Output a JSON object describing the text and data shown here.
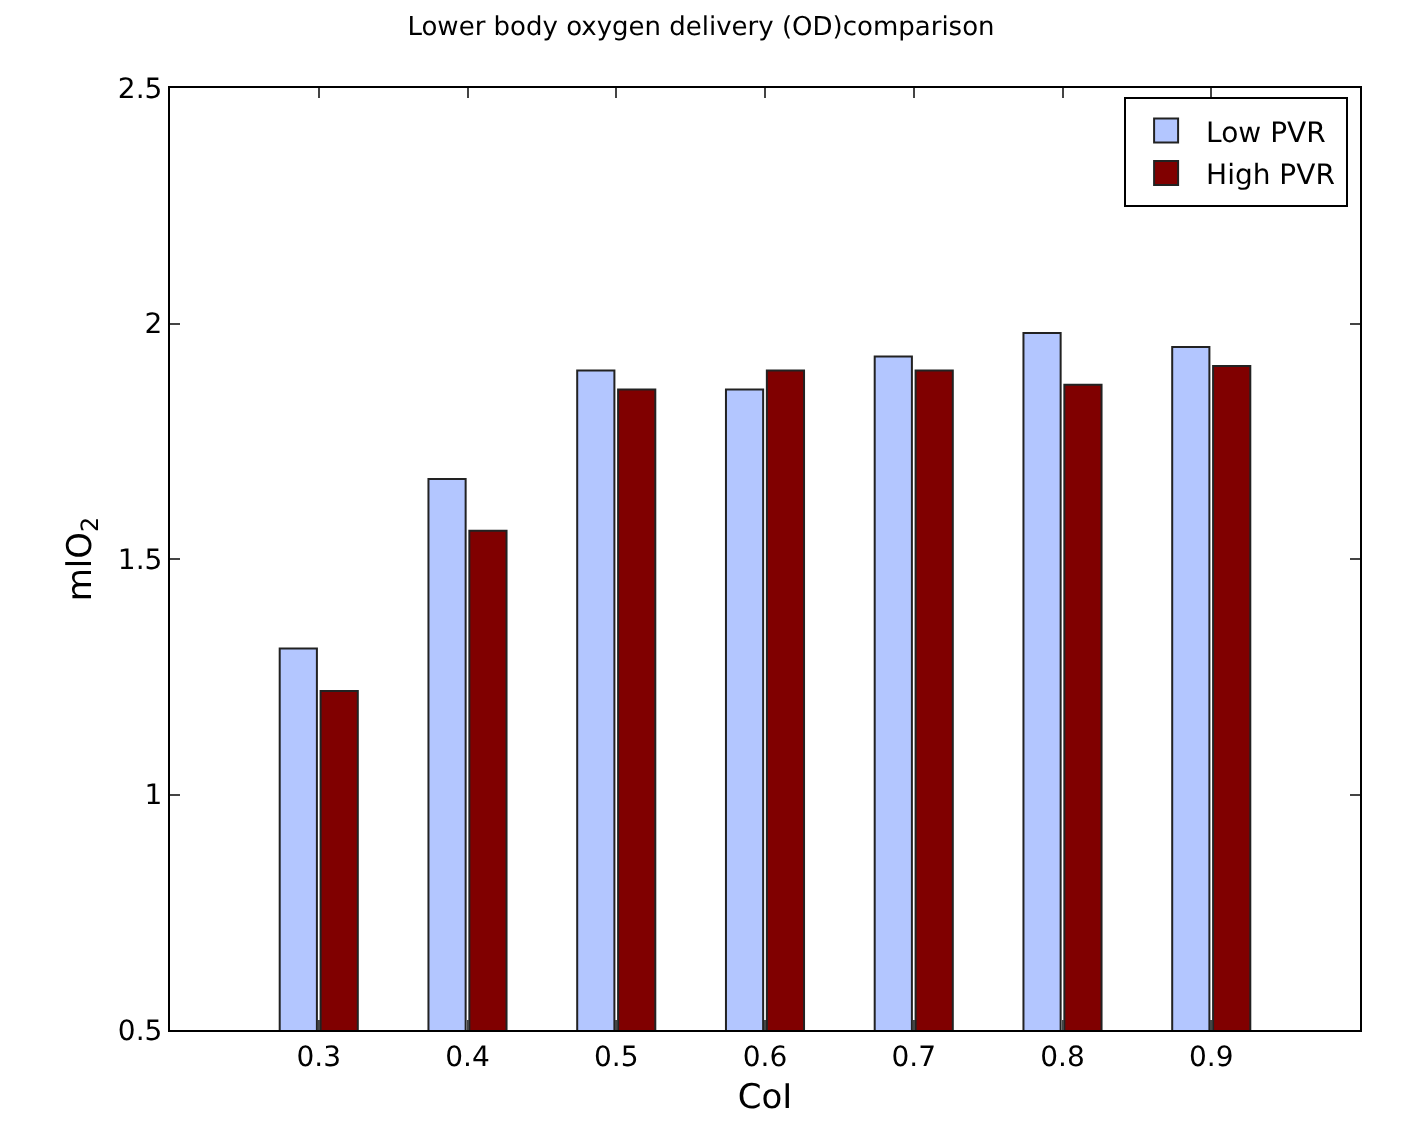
{
  "chart_data": {
    "type": "bar",
    "title": "Lower body oxygen delivery (OD)comparison",
    "xlabel": "CoI",
    "ylabel": "mlO$_{2}$",
    "categories": [
      "0.3",
      "0.4",
      "0.5",
      "0.6",
      "0.7",
      "0.8",
      "0.9"
    ],
    "series": [
      {
        "name": "Low PVR",
        "color": "#b3c6ff",
        "values": [
          1.31,
          1.67,
          1.9,
          1.86,
          1.93,
          1.98,
          1.95
        ]
      },
      {
        "name": "High PVR",
        "color": "#800000",
        "values": [
          1.22,
          1.56,
          1.86,
          1.9,
          1.9,
          1.87,
          1.91
        ]
      }
    ],
    "ylim": [
      0.5,
      2.5
    ],
    "yticks": [
      0.5,
      1,
      1.5,
      2,
      2.5
    ],
    "legend": "top right"
  }
}
